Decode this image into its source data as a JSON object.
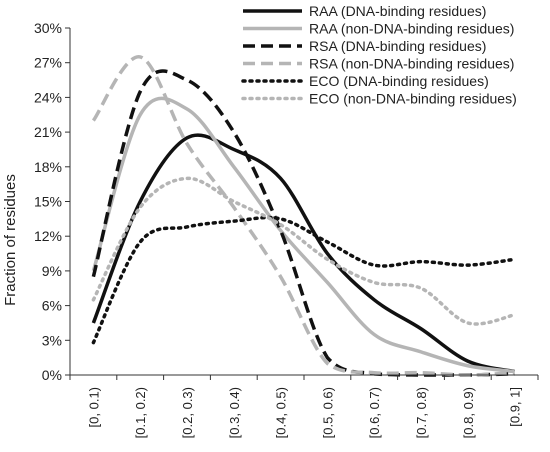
{
  "chart_data": {
    "type": "line",
    "ylabel": "Fraction of residues",
    "xlabel": "",
    "categories": [
      "[0, 0.1)",
      "[0.1, 0.2)",
      "[0.2, 0.3)",
      "[0.3, 0.4)",
      "[0.4, 0.5)",
      "[0.5, 0.6)",
      "[0.6, 0.7)",
      "[0.7, 0.8)",
      "[0.8, 0.9)",
      "[0.9, 1]"
    ],
    "ylim": [
      0,
      30
    ],
    "yticks": [
      "0%",
      "3%",
      "6%",
      "9%",
      "12%",
      "15%",
      "18%",
      "21%",
      "24%",
      "27%",
      "30%"
    ],
    "y_tick_values": [
      0,
      3,
      6,
      9,
      12,
      15,
      18,
      21,
      24,
      27,
      30
    ],
    "grid": false,
    "legend_position": "top-right",
    "series": [
      {
        "name": "RAA (DNA-binding residues)",
        "color": "#111111",
        "dash": "solid",
        "values": [
          4.5,
          15.0,
          20.5,
          19.5,
          17.0,
          10.5,
          6.5,
          4.0,
          1.2,
          0.3
        ]
      },
      {
        "name": "RAA (non-DNA-binding residues)",
        "color": "#b5b5b5",
        "dash": "solid",
        "values": [
          9.0,
          22.5,
          23.0,
          18.0,
          12.5,
          8.0,
          3.5,
          2.0,
          0.8,
          0.3
        ]
      },
      {
        "name": "RSA (DNA-binding residues)",
        "color": "#111111",
        "dash": "dash",
        "values": [
          8.5,
          24.5,
          25.5,
          21.0,
          12.5,
          1.5,
          0.1,
          0.0,
          0.0,
          0.1
        ]
      },
      {
        "name": "RSA (non-DNA-binding residues)",
        "color": "#b5b5b5",
        "dash": "dash",
        "values": [
          22.0,
          27.5,
          20.0,
          14.5,
          8.5,
          1.0,
          0.2,
          0.2,
          0.0,
          0.2
        ]
      },
      {
        "name": "ECO (DNA-binding residues)",
        "color": "#111111",
        "dash": "dot",
        "values": [
          2.8,
          11.5,
          12.8,
          13.3,
          13.5,
          11.5,
          9.5,
          9.8,
          9.5,
          10.0
        ]
      },
      {
        "name": "ECO (non-DNA-binding residues)",
        "color": "#b5b5b5",
        "dash": "dot",
        "values": [
          6.5,
          14.5,
          17.0,
          15.0,
          13.0,
          10.0,
          8.0,
          7.5,
          4.5,
          5.2
        ]
      }
    ]
  }
}
